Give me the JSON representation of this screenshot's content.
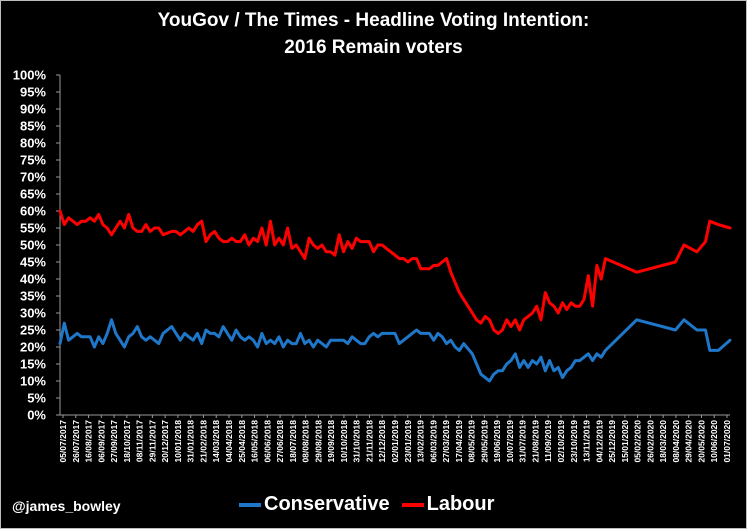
{
  "title_lines": [
    "YouGov / The Times - Headline Voting Intention:",
    "2016 Remain voters"
  ],
  "credit": "@james_bowley",
  "chart_data": {
    "type": "line",
    "title": "YouGov / The Times - Headline Voting Intention: 2016 Remain voters",
    "xlabel": "",
    "ylabel": "",
    "ylim": [
      0,
      100
    ],
    "yticks": [
      "0%",
      "5%",
      "10%",
      "15%",
      "20%",
      "25%",
      "30%",
      "35%",
      "40%",
      "45%",
      "50%",
      "55%",
      "60%",
      "65%",
      "70%",
      "75%",
      "80%",
      "85%",
      "90%",
      "95%",
      "100%"
    ],
    "xlim": [
      "2017-07-05",
      "2020-07-01"
    ],
    "xtick_labels": [
      "05/07/2017",
      "26/07/2017",
      "16/08/2017",
      "06/09/2017",
      "27/09/2017",
      "18/10/2017",
      "08/11/2017",
      "29/11/2017",
      "20/12/2017",
      "10/01/2018",
      "31/01/2018",
      "21/02/2018",
      "14/03/2018",
      "04/04/2018",
      "25/04/2018",
      "16/05/2018",
      "06/06/2018",
      "27/06/2018",
      "18/07/2018",
      "08/08/2018",
      "29/08/2018",
      "19/09/2018",
      "10/10/2018",
      "31/10/2018",
      "21/11/2018",
      "12/12/2018",
      "02/01/2019",
      "23/01/2019",
      "13/02/2019",
      "06/03/2019",
      "27/03/2019",
      "17/04/2019",
      "08/05/2019",
      "29/05/2019",
      "19/06/2019",
      "10/07/2019",
      "31/07/2019",
      "21/08/2019",
      "11/09/2019",
      "02/10/2019",
      "23/10/2019",
      "13/11/2019",
      "04/12/2019",
      "25/12/2019",
      "15/01/2020",
      "05/02/2020",
      "26/02/2020",
      "18/03/2020",
      "08/04/2020",
      "29/04/2020",
      "20/05/2020",
      "10/06/2020",
      "01/07/2020"
    ],
    "grid": false,
    "legend_position": "bottom",
    "series": [
      {
        "name": "Conservative",
        "color": "#1f77c9",
        "points": [
          [
            "2017-07-05",
            21
          ],
          [
            "2017-07-12",
            27
          ],
          [
            "2017-07-19",
            22
          ],
          [
            "2017-07-26",
            23
          ],
          [
            "2017-08-02",
            24
          ],
          [
            "2017-08-09",
            23
          ],
          [
            "2017-08-16",
            23
          ],
          [
            "2017-08-23",
            23
          ],
          [
            "2017-08-30",
            20
          ],
          [
            "2017-09-06",
            23
          ],
          [
            "2017-09-13",
            21
          ],
          [
            "2017-09-20",
            24
          ],
          [
            "2017-09-27",
            28
          ],
          [
            "2017-10-04",
            24
          ],
          [
            "2017-10-11",
            22
          ],
          [
            "2017-10-18",
            20
          ],
          [
            "2017-10-25",
            23
          ],
          [
            "2017-11-01",
            24
          ],
          [
            "2017-11-08",
            26
          ],
          [
            "2017-11-15",
            23
          ],
          [
            "2017-11-22",
            22
          ],
          [
            "2017-11-29",
            23
          ],
          [
            "2017-12-06",
            22
          ],
          [
            "2017-12-13",
            21
          ],
          [
            "2017-12-20",
            24
          ],
          [
            "2018-01-03",
            26
          ],
          [
            "2018-01-10",
            24
          ],
          [
            "2018-01-17",
            22
          ],
          [
            "2018-01-24",
            24
          ],
          [
            "2018-01-31",
            23
          ],
          [
            "2018-02-07",
            22
          ],
          [
            "2018-02-14",
            24
          ],
          [
            "2018-02-21",
            21
          ],
          [
            "2018-02-28",
            25
          ],
          [
            "2018-03-07",
            24
          ],
          [
            "2018-03-14",
            24
          ],
          [
            "2018-03-21",
            23
          ],
          [
            "2018-03-28",
            26
          ],
          [
            "2018-04-04",
            24
          ],
          [
            "2018-04-11",
            22
          ],
          [
            "2018-04-18",
            25
          ],
          [
            "2018-04-25",
            23
          ],
          [
            "2018-05-02",
            22
          ],
          [
            "2018-05-09",
            23
          ],
          [
            "2018-05-16",
            22
          ],
          [
            "2018-05-23",
            20
          ],
          [
            "2018-05-30",
            24
          ],
          [
            "2018-06-06",
            21
          ],
          [
            "2018-06-13",
            22
          ],
          [
            "2018-06-20",
            21
          ],
          [
            "2018-06-27",
            23
          ],
          [
            "2018-07-04",
            20
          ],
          [
            "2018-07-11",
            22
          ],
          [
            "2018-07-18",
            21
          ],
          [
            "2018-07-25",
            21
          ],
          [
            "2018-08-01",
            24
          ],
          [
            "2018-08-08",
            21
          ],
          [
            "2018-08-15",
            22
          ],
          [
            "2018-08-22",
            20
          ],
          [
            "2018-08-29",
            22
          ],
          [
            "2018-09-05",
            21
          ],
          [
            "2018-09-12",
            20
          ],
          [
            "2018-09-19",
            22
          ],
          [
            "2018-09-26",
            22
          ],
          [
            "2018-10-03",
            22
          ],
          [
            "2018-10-10",
            22
          ],
          [
            "2018-10-17",
            21
          ],
          [
            "2018-10-24",
            23
          ],
          [
            "2018-10-31",
            22
          ],
          [
            "2018-11-07",
            21
          ],
          [
            "2018-11-14",
            21
          ],
          [
            "2018-11-21",
            23
          ],
          [
            "2018-11-28",
            24
          ],
          [
            "2018-12-05",
            23
          ],
          [
            "2018-12-12",
            24
          ],
          [
            "2018-12-19",
            24
          ],
          [
            "2019-01-02",
            24
          ],
          [
            "2019-01-09",
            21
          ],
          [
            "2019-01-16",
            22
          ],
          [
            "2019-01-23",
            23
          ],
          [
            "2019-01-30",
            24
          ],
          [
            "2019-02-06",
            25
          ],
          [
            "2019-02-13",
            24
          ],
          [
            "2019-02-20",
            24
          ],
          [
            "2019-02-27",
            24
          ],
          [
            "2019-03-06",
            22
          ],
          [
            "2019-03-13",
            24
          ],
          [
            "2019-03-20",
            23
          ],
          [
            "2019-03-27",
            21
          ],
          [
            "2019-04-03",
            22
          ],
          [
            "2019-04-10",
            20
          ],
          [
            "2019-04-17",
            19
          ],
          [
            "2019-04-24",
            21
          ],
          [
            "2019-05-08",
            18
          ],
          [
            "2019-05-15",
            15
          ],
          [
            "2019-05-22",
            12
          ],
          [
            "2019-05-29",
            11
          ],
          [
            "2019-06-05",
            10
          ],
          [
            "2019-06-12",
            12
          ],
          [
            "2019-06-19",
            13
          ],
          [
            "2019-06-26",
            13
          ],
          [
            "2019-07-03",
            15
          ],
          [
            "2019-07-10",
            16
          ],
          [
            "2019-07-17",
            18
          ],
          [
            "2019-07-24",
            14
          ],
          [
            "2019-07-31",
            16
          ],
          [
            "2019-08-07",
            14
          ],
          [
            "2019-08-14",
            16
          ],
          [
            "2019-08-21",
            15
          ],
          [
            "2019-08-28",
            17
          ],
          [
            "2019-09-04",
            13
          ],
          [
            "2019-09-11",
            16
          ],
          [
            "2019-09-18",
            13
          ],
          [
            "2019-09-25",
            14
          ],
          [
            "2019-10-02",
            11
          ],
          [
            "2019-10-09",
            13
          ],
          [
            "2019-10-16",
            14
          ],
          [
            "2019-10-23",
            16
          ],
          [
            "2019-10-30",
            16
          ],
          [
            "2019-11-06",
            17
          ],
          [
            "2019-11-13",
            18
          ],
          [
            "2019-11-20",
            16
          ],
          [
            "2019-11-27",
            18
          ],
          [
            "2019-12-04",
            17
          ],
          [
            "2019-12-11",
            19
          ],
          [
            "2020-01-31",
            28
          ],
          [
            "2020-04-03",
            25
          ],
          [
            "2020-04-17",
            28
          ],
          [
            "2020-05-08",
            25
          ],
          [
            "2020-05-22",
            25
          ],
          [
            "2020-05-29",
            19
          ],
          [
            "2020-06-12",
            19
          ],
          [
            "2020-07-01",
            22
          ]
        ]
      },
      {
        "name": "Labour",
        "color": "#ff0000",
        "points": [
          [
            "2017-07-05",
            60
          ],
          [
            "2017-07-12",
            56
          ],
          [
            "2017-07-19",
            58
          ],
          [
            "2017-07-26",
            57
          ],
          [
            "2017-08-02",
            56
          ],
          [
            "2017-08-09",
            57
          ],
          [
            "2017-08-16",
            57
          ],
          [
            "2017-08-23",
            58
          ],
          [
            "2017-08-30",
            57
          ],
          [
            "2017-09-06",
            59
          ],
          [
            "2017-09-13",
            56
          ],
          [
            "2017-09-20",
            55
          ],
          [
            "2017-09-27",
            53
          ],
          [
            "2017-10-04",
            55
          ],
          [
            "2017-10-11",
            57
          ],
          [
            "2017-10-18",
            55
          ],
          [
            "2017-10-25",
            59
          ],
          [
            "2017-11-01",
            55
          ],
          [
            "2017-11-08",
            54
          ],
          [
            "2017-11-15",
            54
          ],
          [
            "2017-11-22",
            56
          ],
          [
            "2017-11-29",
            54
          ],
          [
            "2017-12-06",
            55
          ],
          [
            "2017-12-13",
            55
          ],
          [
            "2017-12-20",
            53
          ],
          [
            "2018-01-03",
            54
          ],
          [
            "2018-01-10",
            54
          ],
          [
            "2018-01-17",
            53
          ],
          [
            "2018-01-24",
            54
          ],
          [
            "2018-01-31",
            55
          ],
          [
            "2018-02-07",
            54
          ],
          [
            "2018-02-14",
            56
          ],
          [
            "2018-02-21",
            57
          ],
          [
            "2018-02-28",
            51
          ],
          [
            "2018-03-07",
            53
          ],
          [
            "2018-03-14",
            54
          ],
          [
            "2018-03-21",
            52
          ],
          [
            "2018-03-28",
            51
          ],
          [
            "2018-04-04",
            51
          ],
          [
            "2018-04-11",
            52
          ],
          [
            "2018-04-18",
            51
          ],
          [
            "2018-04-25",
            51
          ],
          [
            "2018-05-02",
            53
          ],
          [
            "2018-05-09",
            50
          ],
          [
            "2018-05-16",
            52
          ],
          [
            "2018-05-23",
            51
          ],
          [
            "2018-05-30",
            55
          ],
          [
            "2018-06-06",
            50
          ],
          [
            "2018-06-13",
            57
          ],
          [
            "2018-06-20",
            50
          ],
          [
            "2018-06-27",
            52
          ],
          [
            "2018-07-04",
            50
          ],
          [
            "2018-07-11",
            55
          ],
          [
            "2018-07-18",
            49
          ],
          [
            "2018-07-25",
            50
          ],
          [
            "2018-08-01",
            48
          ],
          [
            "2018-08-08",
            46
          ],
          [
            "2018-08-15",
            52
          ],
          [
            "2018-08-22",
            50
          ],
          [
            "2018-08-29",
            49
          ],
          [
            "2018-09-05",
            50
          ],
          [
            "2018-09-12",
            48
          ],
          [
            "2018-09-19",
            48
          ],
          [
            "2018-09-26",
            47
          ],
          [
            "2018-10-03",
            53
          ],
          [
            "2018-10-10",
            48
          ],
          [
            "2018-10-17",
            51
          ],
          [
            "2018-10-24",
            49
          ],
          [
            "2018-10-31",
            52
          ],
          [
            "2018-11-07",
            51
          ],
          [
            "2018-11-14",
            51
          ],
          [
            "2018-11-21",
            51
          ],
          [
            "2018-11-28",
            48
          ],
          [
            "2018-12-05",
            50
          ],
          [
            "2018-12-12",
            50
          ],
          [
            "2018-12-19",
            49
          ],
          [
            "2019-01-02",
            47
          ],
          [
            "2019-01-09",
            46
          ],
          [
            "2019-01-16",
            46
          ],
          [
            "2019-01-23",
            45
          ],
          [
            "2019-01-30",
            46
          ],
          [
            "2019-02-06",
            46
          ],
          [
            "2019-02-13",
            43
          ],
          [
            "2019-02-20",
            43
          ],
          [
            "2019-02-27",
            43
          ],
          [
            "2019-03-06",
            44
          ],
          [
            "2019-03-13",
            44
          ],
          [
            "2019-03-20",
            45
          ],
          [
            "2019-03-27",
            46
          ],
          [
            "2019-04-03",
            42
          ],
          [
            "2019-04-10",
            39
          ],
          [
            "2019-04-17",
            36
          ],
          [
            "2019-04-24",
            34
          ],
          [
            "2019-05-08",
            30
          ],
          [
            "2019-05-15",
            28
          ],
          [
            "2019-05-22",
            27
          ],
          [
            "2019-05-29",
            29
          ],
          [
            "2019-06-05",
            28
          ],
          [
            "2019-06-12",
            25
          ],
          [
            "2019-06-19",
            24
          ],
          [
            "2019-06-26",
            25
          ],
          [
            "2019-07-03",
            28
          ],
          [
            "2019-07-10",
            26
          ],
          [
            "2019-07-17",
            28
          ],
          [
            "2019-07-24",
            25
          ],
          [
            "2019-07-31",
            28
          ],
          [
            "2019-08-07",
            29
          ],
          [
            "2019-08-14",
            30
          ],
          [
            "2019-08-21",
            32
          ],
          [
            "2019-08-28",
            28
          ],
          [
            "2019-09-04",
            36
          ],
          [
            "2019-09-11",
            33
          ],
          [
            "2019-09-18",
            32
          ],
          [
            "2019-09-25",
            30
          ],
          [
            "2019-10-02",
            33
          ],
          [
            "2019-10-09",
            31
          ],
          [
            "2019-10-16",
            33
          ],
          [
            "2019-10-23",
            32
          ],
          [
            "2019-10-30",
            32
          ],
          [
            "2019-11-06",
            34
          ],
          [
            "2019-11-13",
            41
          ],
          [
            "2019-11-20",
            32
          ],
          [
            "2019-11-27",
            44
          ],
          [
            "2019-12-04",
            40
          ],
          [
            "2019-12-11",
            46
          ],
          [
            "2020-01-31",
            42
          ],
          [
            "2020-04-03",
            45
          ],
          [
            "2020-04-17",
            50
          ],
          [
            "2020-05-08",
            48
          ],
          [
            "2020-05-22",
            51
          ],
          [
            "2020-05-29",
            57
          ],
          [
            "2020-06-12",
            56
          ],
          [
            "2020-07-01",
            55
          ]
        ]
      }
    ]
  }
}
